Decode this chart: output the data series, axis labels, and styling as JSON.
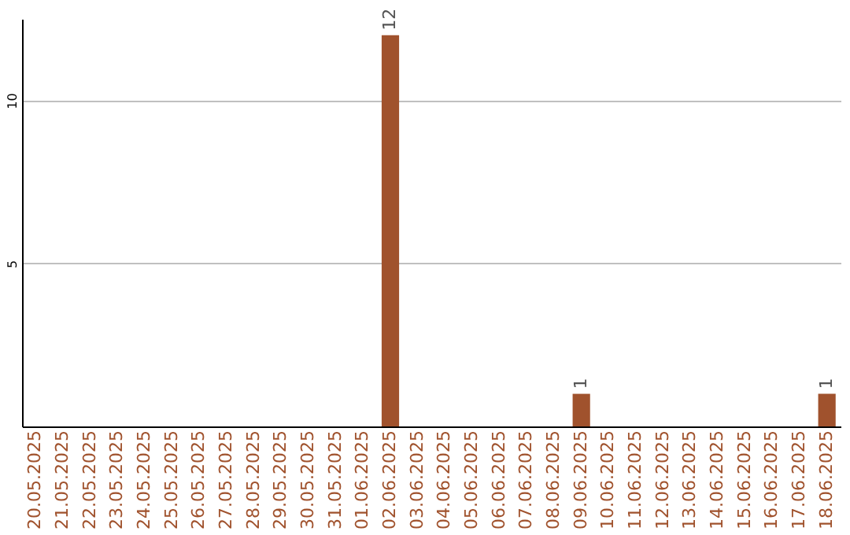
{
  "chart_data": {
    "type": "bar",
    "categories": [
      "20.05.2025",
      "21.05.2025",
      "22.05.2025",
      "23.05.2025",
      "24.05.2025",
      "25.05.2025",
      "26.05.2025",
      "27.05.2025",
      "28.05.2025",
      "29.05.2025",
      "30.05.2025",
      "31.05.2025",
      "01.06.2025",
      "02.06.2025",
      "03.06.2025",
      "04.06.2025",
      "05.06.2025",
      "06.06.2025",
      "07.06.2025",
      "08.06.2025",
      "09.06.2025",
      "10.06.2025",
      "11.06.2025",
      "12.06.2025",
      "13.06.2025",
      "14.06.2025",
      "15.06.2025",
      "16.06.2025",
      "17.06.2025",
      "18.06.2025"
    ],
    "values": [
      0,
      0,
      0,
      0,
      0,
      0,
      0,
      0,
      0,
      0,
      0,
      0,
      0,
      12,
      0,
      0,
      0,
      0,
      0,
      0,
      1,
      0,
      0,
      0,
      0,
      0,
      0,
      0,
      0,
      1
    ],
    "value_labels": [
      null,
      null,
      null,
      null,
      null,
      null,
      null,
      null,
      null,
      null,
      null,
      null,
      null,
      "12",
      null,
      null,
      null,
      null,
      null,
      null,
      "1",
      null,
      null,
      null,
      null,
      null,
      null,
      null,
      null,
      "1"
    ],
    "color": "#a0522d",
    "ylim": [
      0,
      12.5
    ],
    "yticks": [
      5,
      10
    ],
    "grid": "y"
  }
}
